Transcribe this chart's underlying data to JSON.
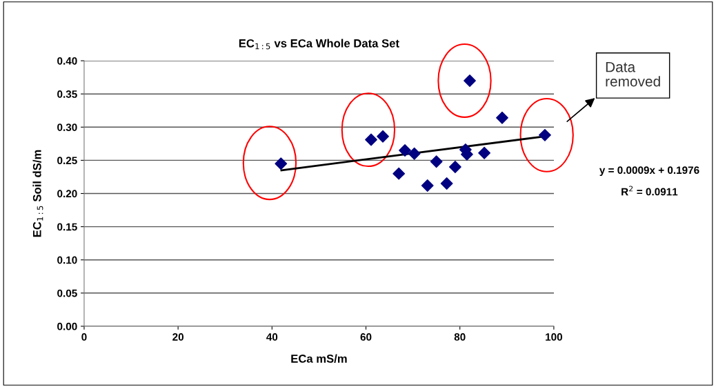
{
  "chart_data": {
    "type": "scatter",
    "title": "EC$_{1:5}$ vs ECa Whole Data Set",
    "xlabel": "ECa mS/m",
    "ylabel": "EC$_{1:5}$ Soil dS/m",
    "xlim": [
      0,
      100
    ],
    "xticks": [
      0,
      20,
      40,
      60,
      80,
      100
    ],
    "ylim": [
      0,
      0.4
    ],
    "yticks": [
      {
        "value": 0,
        "label": "0.00"
      },
      {
        "value": 0.05,
        "label": "0.05"
      },
      {
        "value": 0.1,
        "label": "0.10"
      },
      {
        "value": 0.15,
        "label": "0.15"
      },
      {
        "value": 0.2,
        "label": "0.20"
      },
      {
        "value": 0.25,
        "label": "0.25"
      },
      {
        "value": 0.3,
        "label": "0.30"
      },
      {
        "value": 0.35,
        "label": "0.35"
      },
      {
        "value": 0.4,
        "label": "0.40"
      }
    ],
    "grid": "y",
    "marker": "diamond",
    "series": [
      {
        "color": "#000080",
        "x": [
          41.9,
          61.1,
          63.6,
          67.0,
          68.3,
          70.3,
          73.1,
          75.0,
          77.2,
          79.0,
          81.2,
          81.5,
          82.1,
          85.2,
          89.0,
          98.1
        ],
        "values": [
          0.245,
          0.281,
          0.286,
          0.23,
          0.265,
          0.26,
          0.212,
          0.248,
          0.215,
          0.24,
          0.266,
          0.259,
          0.37,
          0.261,
          0.314,
          0.288
        ]
      },
      {
        "type": "line",
        "color": "#000000",
        "marker": "none",
        "x": [
          42,
          98
        ],
        "values": [
          0.235,
          0.286
        ]
      }
    ],
    "annotations": [
      "Data\nremoved",
      "y = 0.0009x + 0.1976",
      "R$^{2}$ = 0.0911"
    ]
  }
}
